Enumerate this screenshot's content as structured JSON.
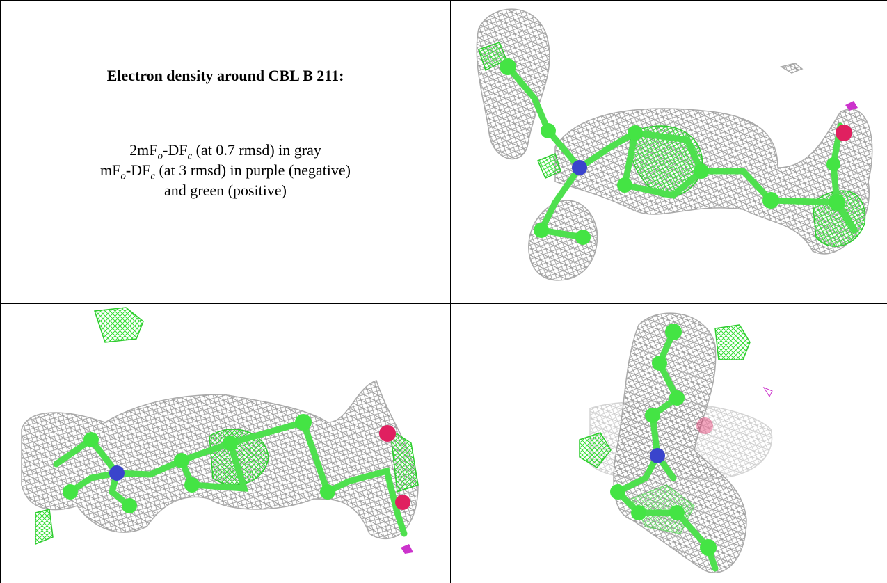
{
  "figure": {
    "title": "Electron density around CBL B 211:",
    "lines": [
      [
        "2mF",
        "o",
        "-DF",
        "c",
        " (at 0.7 rmsd) in gray"
      ],
      [
        "mF",
        "o",
        "-DF",
        "c",
        " (at 3 rmsd) in purple (negative)"
      ],
      [
        "and green (positive)"
      ]
    ]
  }
}
